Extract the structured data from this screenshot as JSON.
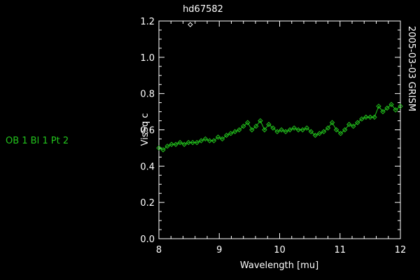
{
  "side_label": "OB 1 Bl 1 Pt 2",
  "side_label_color": "#22c41c",
  "chart_data": {
    "type": "scatter",
    "title": "hd67582",
    "xlabel": "Wavelength [mu]",
    "ylabel": "VisSq c",
    "right_label": "2005-03-03 GRISM",
    "xlim": [
      8,
      12
    ],
    "ylim": [
      0,
      1.2
    ],
    "x_ticks": [
      "8",
      "9",
      "10",
      "11",
      "12"
    ],
    "y_ticks": [
      "0.0",
      "0.2",
      "0.4",
      "0.6",
      "0.8",
      "1.0",
      "1.2"
    ],
    "grid": false,
    "series": [
      {
        "color": "#22c41c",
        "marker": "diamond",
        "line": true,
        "x": [
          8.0,
          8.07,
          8.14,
          8.21,
          8.28,
          8.35,
          8.42,
          8.49,
          8.56,
          8.63,
          8.7,
          8.77,
          8.84,
          8.91,
          8.98,
          9.05,
          9.12,
          9.19,
          9.26,
          9.33,
          9.4,
          9.47,
          9.54,
          9.61,
          9.68,
          9.75,
          9.82,
          9.89,
          9.96,
          10.03,
          10.1,
          10.17,
          10.24,
          10.31,
          10.38,
          10.45,
          10.52,
          10.59,
          10.66,
          10.73,
          10.8,
          10.87,
          10.94,
          11.01,
          11.08,
          11.15,
          11.22,
          11.29,
          11.36,
          11.43,
          11.5,
          11.57,
          11.64,
          11.71,
          11.78,
          11.85,
          11.92,
          12.0
        ],
        "y": [
          0.5,
          0.49,
          0.51,
          0.52,
          0.52,
          0.53,
          0.52,
          0.53,
          0.53,
          0.53,
          0.54,
          0.55,
          0.54,
          0.54,
          0.56,
          0.55,
          0.57,
          0.58,
          0.59,
          0.6,
          0.62,
          0.64,
          0.6,
          0.62,
          0.65,
          0.6,
          0.63,
          0.61,
          0.59,
          0.6,
          0.59,
          0.6,
          0.61,
          0.6,
          0.6,
          0.61,
          0.59,
          0.57,
          0.58,
          0.59,
          0.61,
          0.64,
          0.6,
          0.58,
          0.6,
          0.63,
          0.62,
          0.64,
          0.66,
          0.67,
          0.67,
          0.67,
          0.73,
          0.7,
          0.72,
          0.74,
          0.71,
          0.73
        ]
      },
      {
        "color": "#ffffff",
        "marker": "diamond",
        "line": false,
        "x": [
          8.52
        ],
        "y": [
          1.18
        ]
      }
    ]
  }
}
